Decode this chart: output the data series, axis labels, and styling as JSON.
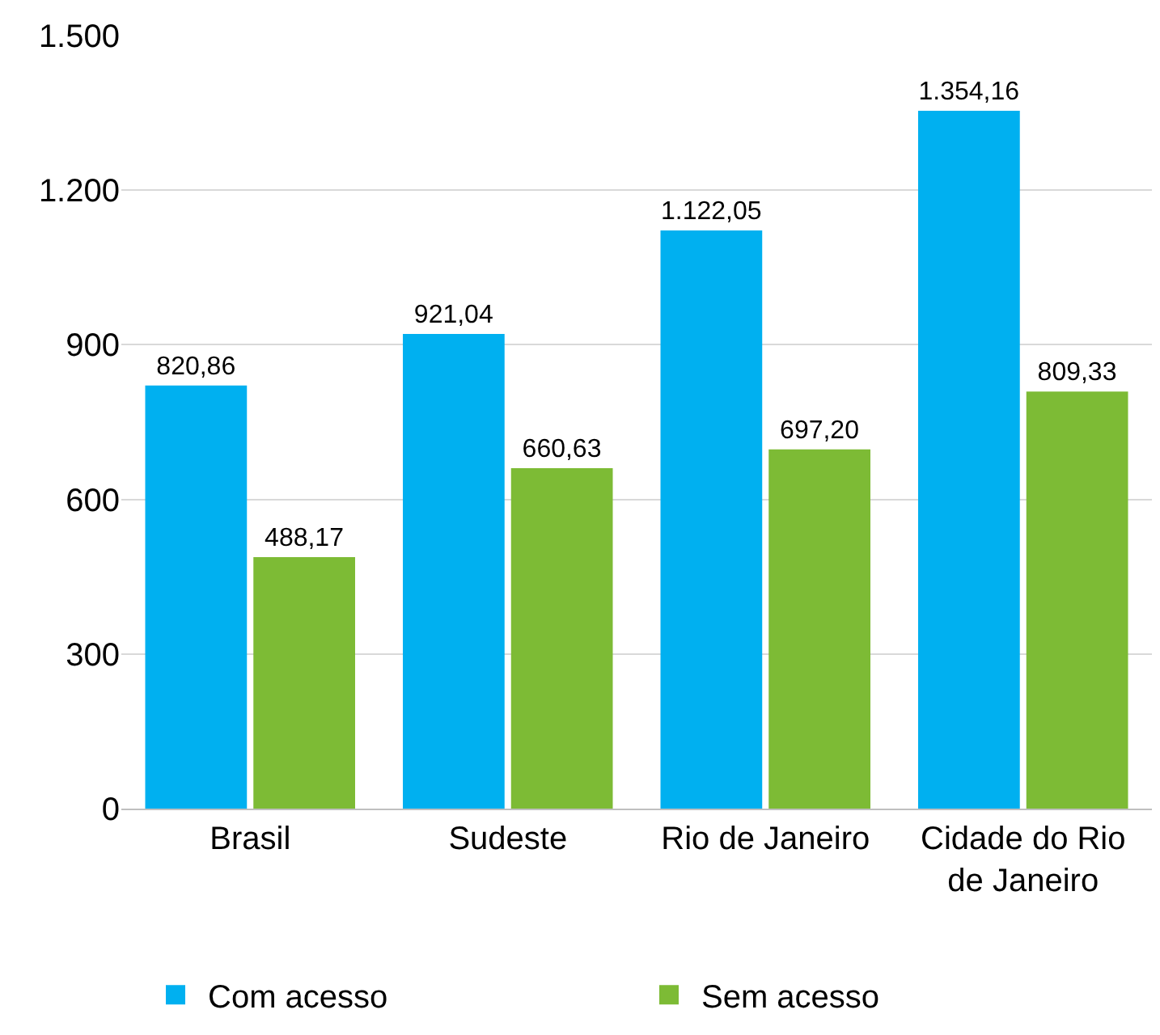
{
  "chart_data": {
    "type": "bar",
    "categories": [
      "Brasil",
      "Sudeste",
      "Rio de Janeiro",
      "Cidade do Rio de Janeiro"
    ],
    "series": [
      {
        "name": "Com acesso",
        "color": "#00b0f0",
        "values": [
          820.86,
          921.04,
          1122.05,
          1354.16
        ],
        "value_labels": [
          "820,86",
          "921,04",
          "1.122,05",
          "1.354,16"
        ]
      },
      {
        "name": "Sem acesso",
        "color": "#7dbb35",
        "values": [
          488.17,
          660.63,
          697.2,
          809.33
        ],
        "value_labels": [
          "488,17",
          "660,63",
          "697,20",
          "809,33"
        ]
      }
    ],
    "ylim": [
      0,
      1500
    ],
    "yticks": [
      0,
      300,
      600,
      900,
      {
        "value": 1200,
        "label": "1.200"
      },
      {
        "value": 1500,
        "label": "1.500"
      }
    ],
    "grid": "y",
    "legend": "bottom"
  }
}
